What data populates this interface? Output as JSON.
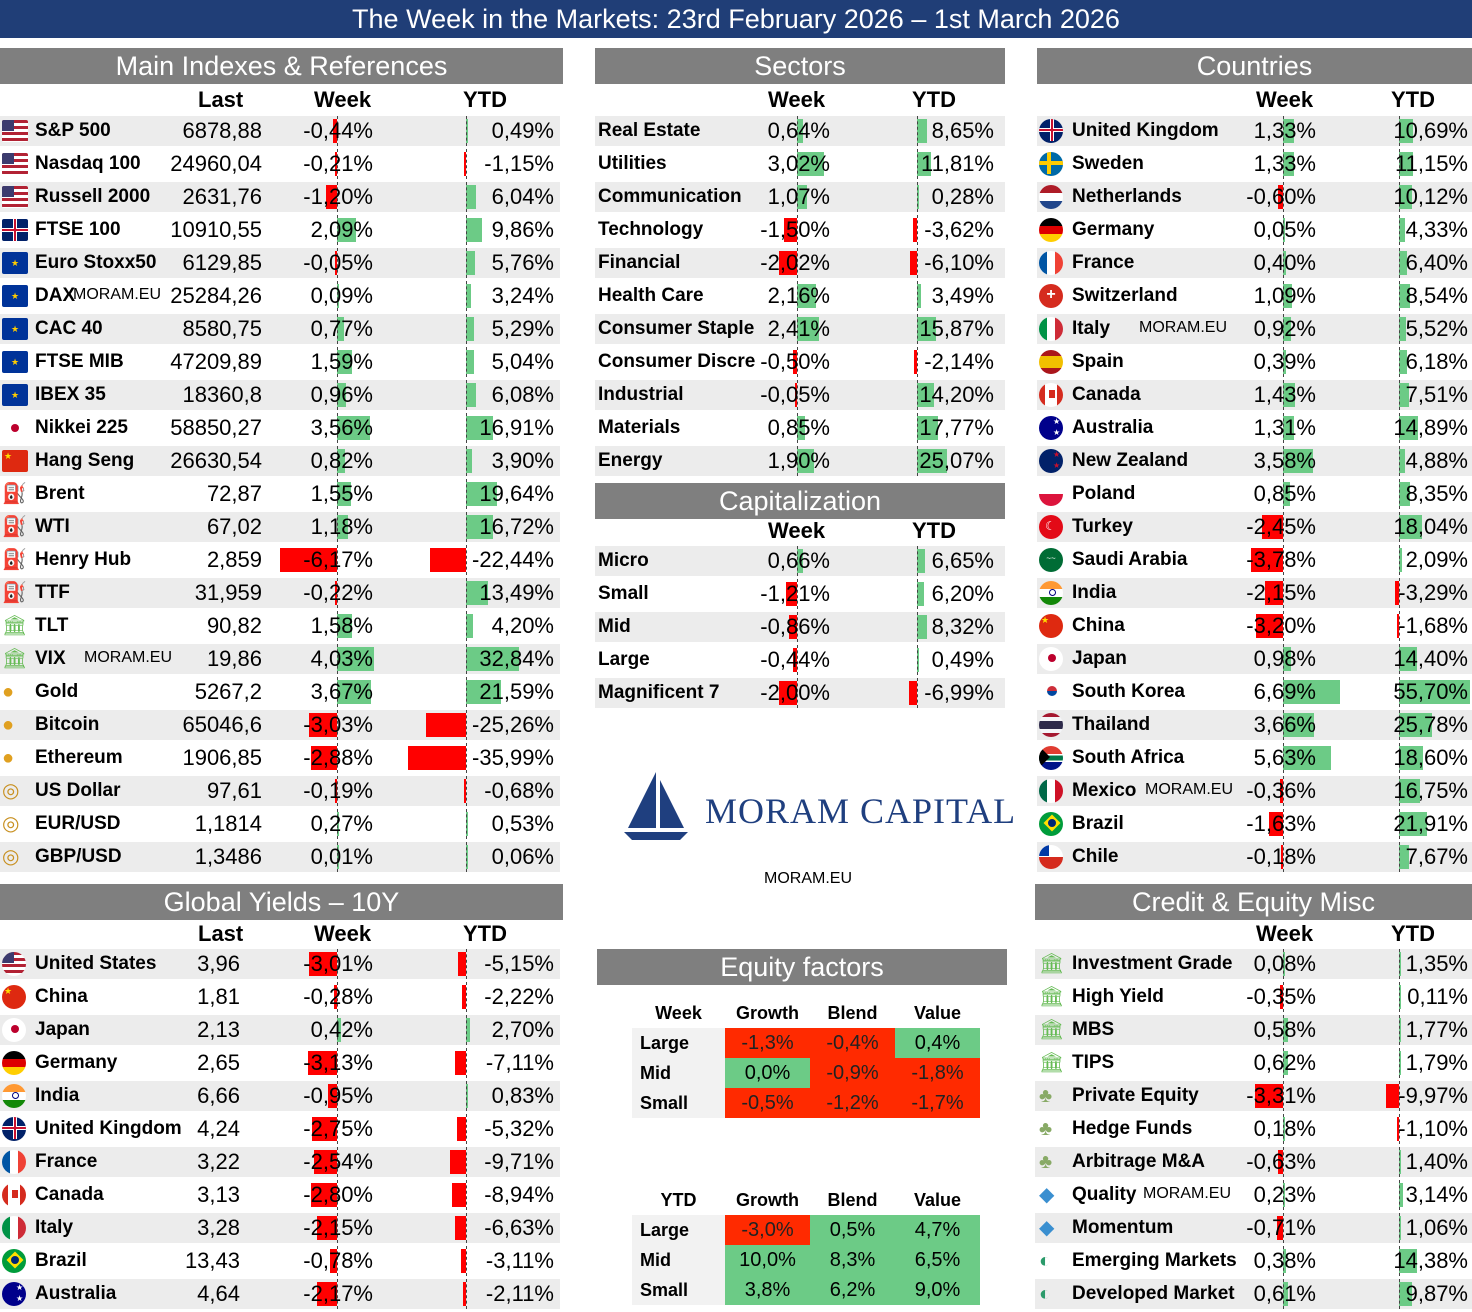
{
  "title": "The Week in the Markets: 23rd February 2026 – 1st March 2026",
  "watermark": "MORAM.EU",
  "colors": {
    "pos": "#6ccb86",
    "neg": "#ff0000",
    "header": "#7f7f7f",
    "title": "#203e77"
  },
  "main": {
    "header": "Main Indexes & References",
    "cols": {
      "last": "Last",
      "week": "Week",
      "ytd": "YTD"
    },
    "rows": [
      {
        "icon": "us-flag",
        "name": "S&P 500",
        "last": "6878,88",
        "week": "-0,44%",
        "ytd": "0,49%"
      },
      {
        "icon": "us-flag",
        "name": "Nasdaq 100",
        "last": "24960,04",
        "week": "-0,21%",
        "ytd": "-1,15%"
      },
      {
        "icon": "us-flag",
        "name": "Russell 2000",
        "last": "2631,76",
        "week": "-1,20%",
        "ytd": "6,04%"
      },
      {
        "icon": "uk-flag",
        "name": "FTSE 100",
        "last": "10910,55",
        "week": "2,09%",
        "ytd": "9,86%"
      },
      {
        "icon": "eu-flag",
        "name": "Euro Stoxx50",
        "last": "6129,85",
        "week": "-0,05%",
        "ytd": "5,76%"
      },
      {
        "icon": "eu-flag",
        "name": "DAX",
        "tag": "MORAM.EU",
        "last": "25284,26",
        "week": "0,09%",
        "ytd": "3,24%"
      },
      {
        "icon": "eu-flag",
        "name": "CAC 40",
        "last": "8580,75",
        "week": "0,77%",
        "ytd": "5,29%"
      },
      {
        "icon": "eu-flag",
        "name": "FTSE MIB",
        "last": "47209,89",
        "week": "1,59%",
        "ytd": "5,04%"
      },
      {
        "icon": "eu-flag",
        "name": "IBEX 35",
        "last": "18360,8",
        "week": "0,96%",
        "ytd": "6,08%"
      },
      {
        "icon": "japan-flag",
        "name": "Nikkei 225",
        "last": "58850,27",
        "week": "3,56%",
        "ytd": "16,91%"
      },
      {
        "icon": "china-flag",
        "name": "Hang Seng",
        "last": "26630,54",
        "week": "0,82%",
        "ytd": "3,90%"
      },
      {
        "icon": "oil-rig-icon",
        "name": "Brent",
        "last": "72,87",
        "week": "1,55%",
        "ytd": "19,64%"
      },
      {
        "icon": "oil-rig-icon",
        "name": "WTI",
        "last": "67,02",
        "week": "1,18%",
        "ytd": "16,72%"
      },
      {
        "icon": "oil-rig-icon",
        "name": "Henry Hub",
        "last": "2,859",
        "week": "-6,17%",
        "ytd": "-22,44%"
      },
      {
        "icon": "oil-rig-icon",
        "name": "TTF",
        "last": "31,959",
        "week": "-0,22%",
        "ytd": "13,49%"
      },
      {
        "icon": "bank-icon",
        "name": "TLT",
        "last": "90,82",
        "week": "1,58%",
        "ytd": "4,20%"
      },
      {
        "icon": "bank-icon",
        "name": "VIX",
        "tag": "MORAM.EU",
        "last": "19,86",
        "week": "4,03%",
        "ytd": "32,84%"
      },
      {
        "icon": "coin-icon",
        "name": "Gold",
        "last": "5267,2",
        "week": "3,67%",
        "ytd": "21,59%"
      },
      {
        "icon": "coin-icon",
        "name": "Bitcoin",
        "last": "65046,6",
        "week": "-3,03%",
        "ytd": "-25,26%"
      },
      {
        "icon": "coin-icon",
        "name": "Ethereum",
        "last": "1906,85",
        "week": "-2,88%",
        "ytd": "-35,99%"
      },
      {
        "icon": "coins-icon",
        "name": "US Dollar",
        "last": "97,61",
        "week": "-0,19%",
        "ytd": "-0,68%"
      },
      {
        "icon": "coins-icon",
        "name": "EUR/USD",
        "last": "1,1814",
        "week": "0,27%",
        "ytd": "0,53%"
      },
      {
        "icon": "coins-icon",
        "name": "GBP/USD",
        "last": "1,3486",
        "week": "0,01%",
        "ytd": "0,06%"
      }
    ]
  },
  "sectors": {
    "header": "Sectors",
    "cols": {
      "week": "Week",
      "ytd": "YTD"
    },
    "rows": [
      {
        "name": "Real Estate",
        "week": "0,64%",
        "ytd": "8,65%"
      },
      {
        "name": "Utilities",
        "week": "3,02%",
        "ytd": "11,81%"
      },
      {
        "name": "Communication",
        "week": "1,07%",
        "ytd": "0,28%"
      },
      {
        "name": "Technology",
        "week": "-1,50%",
        "ytd": "-3,62%"
      },
      {
        "name": "Financial",
        "week": "-2,02%",
        "ytd": "-6,10%"
      },
      {
        "name": "Health Care",
        "week": "2,16%",
        "ytd": "3,49%"
      },
      {
        "name": "Consumer Staple",
        "week": "2,41%",
        "ytd": "15,87%"
      },
      {
        "name": "Consumer Discre",
        "week": "-0,50%",
        "ytd": "-2,14%"
      },
      {
        "name": "Industrial",
        "week": "-0,05%",
        "ytd": "14,20%"
      },
      {
        "name": "Materials",
        "week": "0,85%",
        "ytd": "17,77%"
      },
      {
        "name": "Energy",
        "week": "1,90%",
        "ytd": "25,07%"
      }
    ]
  },
  "cap": {
    "header": "Capitalization",
    "cols": {
      "week": "Week",
      "ytd": "YTD"
    },
    "rows": [
      {
        "name": "Micro",
        "week": "0,66%",
        "ytd": "6,65%"
      },
      {
        "name": "Small",
        "week": "-1,21%",
        "ytd": "6,20%"
      },
      {
        "name": "Mid",
        "week": "-0,86%",
        "ytd": "8,32%"
      },
      {
        "name": "Large",
        "week": "-0,44%",
        "ytd": "0,49%"
      },
      {
        "name": "Magnificent 7",
        "week": "-2,00%",
        "ytd": "-6,99%"
      }
    ]
  },
  "logo": {
    "brand": "MORAM CAPITAL",
    "url": "MORAM.EU"
  },
  "countries": {
    "header": "Countries",
    "cols": {
      "week": "Week",
      "ytd": "YTD"
    },
    "rows": [
      {
        "icon": "uk-flag",
        "name": "United Kingdom",
        "week": "1,33%",
        "ytd": "10,69%"
      },
      {
        "icon": "sweden-flag",
        "name": "Sweden",
        "week": "1,33%",
        "ytd": "11,15%"
      },
      {
        "icon": "netherlands-flag",
        "name": "Netherlands",
        "week": "-0,60%",
        "ytd": "10,12%"
      },
      {
        "icon": "germany-flag",
        "name": "Germany",
        "week": "0,05%",
        "ytd": "4,33%"
      },
      {
        "icon": "france-flag",
        "name": "France",
        "week": "0,40%",
        "ytd": "6,40%"
      },
      {
        "icon": "switzerland-flag",
        "name": "Switzerland",
        "week": "1,09%",
        "ytd": "8,54%"
      },
      {
        "icon": "italy-flag",
        "name": "Italy",
        "tag": "MORAM.EU",
        "week": "0,92%",
        "ytd": "5,52%"
      },
      {
        "icon": "spain-flag",
        "name": "Spain",
        "week": "0,39%",
        "ytd": "6,18%"
      },
      {
        "icon": "canada-flag",
        "name": "Canada",
        "week": "1,43%",
        "ytd": "7,51%"
      },
      {
        "icon": "australia-flag",
        "name": "Australia",
        "week": "1,31%",
        "ytd": "14,89%"
      },
      {
        "icon": "new-zealand-flag",
        "name": "New Zealand",
        "week": "3,58%",
        "ytd": "4,88%"
      },
      {
        "icon": "poland-flag",
        "name": "Poland",
        "week": "0,85%",
        "ytd": "8,35%"
      },
      {
        "icon": "turkey-flag",
        "name": "Turkey",
        "week": "-2,45%",
        "ytd": "18,04%"
      },
      {
        "icon": "saudi-flag",
        "name": "Saudi Arabia",
        "week": "-3,78%",
        "ytd": "2,09%"
      },
      {
        "icon": "india-flag",
        "name": "India",
        "week": "-2,15%",
        "ytd": "-3,29%"
      },
      {
        "icon": "china-flag",
        "name": "China",
        "week": "-3,20%",
        "ytd": "-1,68%"
      },
      {
        "icon": "japan-flag",
        "name": "Japan",
        "week": "0,98%",
        "ytd": "14,40%"
      },
      {
        "icon": "south-korea-flag",
        "name": "South Korea",
        "week": "6,69%",
        "ytd": "55,70%"
      },
      {
        "icon": "thailand-flag",
        "name": "Thailand",
        "week": "3,66%",
        "ytd": "25,78%"
      },
      {
        "icon": "south-africa-flag",
        "name": "South Africa",
        "week": "5,63%",
        "ytd": "18,60%"
      },
      {
        "icon": "mexico-flag",
        "name": "Mexico",
        "tag": "MORAM.EU",
        "week": "-0,36%",
        "ytd": "16,75%"
      },
      {
        "icon": "brazil-flag",
        "name": "Brazil",
        "week": "-1,63%",
        "ytd": "21,91%"
      },
      {
        "icon": "chile-flag",
        "name": "Chile",
        "week": "-0,18%",
        "ytd": "7,67%"
      }
    ]
  },
  "yields": {
    "header": "Global Yields – 10Y",
    "cols": {
      "last": "Last",
      "week": "Week",
      "ytd": "YTD"
    },
    "rows": [
      {
        "icon": "us-flag",
        "name": "United States",
        "last": "3,96",
        "week": "-3,01%",
        "ytd": "-5,15%"
      },
      {
        "icon": "china-flag",
        "name": "China",
        "last": "1,81",
        "week": "-0,28%",
        "ytd": "-2,22%"
      },
      {
        "icon": "japan-flag",
        "name": "Japan",
        "last": "2,13",
        "week": "0,42%",
        "ytd": "2,70%"
      },
      {
        "icon": "germany-flag",
        "name": "Germany",
        "last": "2,65",
        "week": "-3,13%",
        "ytd": "-7,11%"
      },
      {
        "icon": "india-flag",
        "name": "India",
        "last": "6,66",
        "week": "-0,95%",
        "ytd": "0,83%"
      },
      {
        "icon": "uk-flag",
        "name": "United Kingdom",
        "last": "4,24",
        "week": "-2,75%",
        "ytd": "-5,32%"
      },
      {
        "icon": "france-flag",
        "name": "France",
        "last": "3,22",
        "week": "-2,54%",
        "ytd": "-9,71%"
      },
      {
        "icon": "canada-flag",
        "name": "Canada",
        "last": "3,13",
        "week": "-2,80%",
        "ytd": "-8,94%"
      },
      {
        "icon": "italy-flag",
        "name": "Italy",
        "last": "3,28",
        "week": "-2,15%",
        "ytd": "-6,63%"
      },
      {
        "icon": "brazil-flag",
        "name": "Brazil",
        "last": "13,43",
        "week": "-0,78%",
        "ytd": "-3,11%"
      },
      {
        "icon": "australia-flag",
        "name": "Australia",
        "last": "4,64",
        "week": "-2,17%",
        "ytd": "-2,11%"
      }
    ]
  },
  "factors": {
    "header": "Equity factors",
    "cols": [
      "Growth",
      "Blend",
      "Value"
    ],
    "week": {
      "label": "Week",
      "rows": [
        {
          "name": "Large",
          "vals": [
            "-1,3%",
            "-0,4%",
            "0,4%"
          ]
        },
        {
          "name": "Mid",
          "vals": [
            "0,0%",
            "-0,9%",
            "-1,8%"
          ]
        },
        {
          "name": "Small",
          "vals": [
            "-0,5%",
            "-1,2%",
            "-1,7%"
          ]
        }
      ]
    },
    "ytd": {
      "label": "YTD",
      "rows": [
        {
          "name": "Large",
          "vals": [
            "-3,0%",
            "0,5%",
            "4,7%"
          ]
        },
        {
          "name": "Mid",
          "vals": [
            "10,0%",
            "8,3%",
            "6,5%"
          ]
        },
        {
          "name": "Small",
          "vals": [
            "3,8%",
            "6,2%",
            "9,0%"
          ]
        }
      ]
    }
  },
  "credit": {
    "header": "Credit & Equity Misc",
    "cols": {
      "week": "Week",
      "ytd": "YTD"
    },
    "rows": [
      {
        "icon": "bank-icon",
        "name": "Investment Grade",
        "week": "0,08%",
        "ytd": "1,35%"
      },
      {
        "icon": "bank-icon",
        "name": "High Yield",
        "week": "-0,35%",
        "ytd": "0,11%"
      },
      {
        "icon": "bank-icon",
        "name": "MBS",
        "week": "0,58%",
        "ytd": "1,77%"
      },
      {
        "icon": "bank-icon",
        "name": "TIPS",
        "week": "0,62%",
        "ytd": "1,79%"
      },
      {
        "icon": "tree-icon",
        "name": "Private Equity",
        "week": "-3,31%",
        "ytd": "-9,97%"
      },
      {
        "icon": "tree-icon",
        "name": "Hedge Funds",
        "week": "0,18%",
        "ytd": "-1,10%"
      },
      {
        "icon": "tree-icon",
        "name": "Arbitrage M&A",
        "week": "-0,63%",
        "ytd": "1,40%"
      },
      {
        "icon": "diamond-icon",
        "name": "Quality",
        "tag": "MORAM.EU",
        "week": "0,23%",
        "ytd": "3,14%"
      },
      {
        "icon": "diamond-icon",
        "name": "Momentum",
        "week": "-0,71%",
        "ytd": "1,06%"
      },
      {
        "icon": "globe-icon",
        "name": "Emerging Markets",
        "week": "0,38%",
        "ytd": "14,38%"
      },
      {
        "icon": "globe-icon",
        "name": "Developed Market",
        "week": "0,61%",
        "ytd": "9,87%"
      }
    ]
  },
  "chart_data": {
    "type": "table",
    "title": "The Week in the Markets: 23rd February 2026 – 1st March 2026",
    "tables": [
      "Main Indexes & References",
      "Sectors",
      "Capitalization",
      "Countries",
      "Global Yields – 10Y",
      "Equity factors",
      "Credit & Equity Misc"
    ]
  }
}
